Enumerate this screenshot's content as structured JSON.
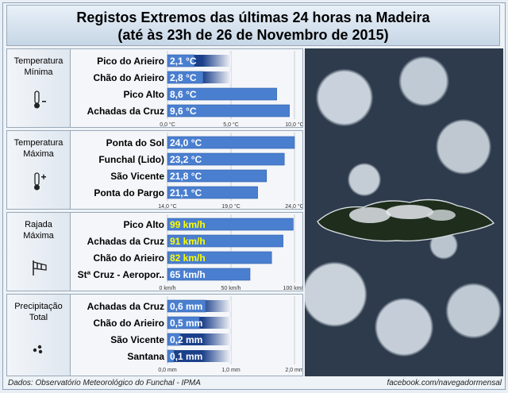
{
  "header": {
    "title_line1": "Registos Extremos das últimas 24 horas na Madeira",
    "title_line2": "(até às 23h de 26 de Novembro de 2015)"
  },
  "footer": {
    "source": "Dados:  Observatório Meteorológico do Funchal - IPMA",
    "credit": "facebook.com/navegadormensal"
  },
  "map": {
    "image_description": "satellite"
  },
  "colors": {
    "bar": "#4a7fd0",
    "bar_dark": "#1b3f8a",
    "label_white": "#ffffff",
    "label_yellow": "#ffff00"
  },
  "chart_data": [
    {
      "type": "bar",
      "category_label": "Temperatura\nMínima",
      "icon": "thermometer-minus-icon",
      "categories": [
        "Pico do Arieiro",
        "Chão do Arieiro",
        "Pico Alto",
        "Achadas da Cruz"
      ],
      "values": [
        2.1,
        2.8,
        8.6,
        9.6
      ],
      "value_labels": [
        "2,1 °C",
        "2,8 °C",
        "8,6 °C",
        "9,6 °C"
      ],
      "xlim": [
        0,
        10
      ],
      "ticks": [
        0,
        5,
        10
      ],
      "tick_labels": [
        "0,0 °C",
        "5,0 °C",
        "10,0 °C"
      ],
      "label_color": "white",
      "faded": true
    },
    {
      "type": "bar",
      "category_label": "Temperatura\nMáxima",
      "icon": "thermometer-plus-icon",
      "categories": [
        "Ponta do Sol",
        "Funchal (Lido)",
        "São Vicente",
        "Ponta do Pargo"
      ],
      "values": [
        24.0,
        23.2,
        21.8,
        21.1
      ],
      "value_labels": [
        "24,0 °C",
        "23,2 °C",
        "21,8 °C",
        "21,1 °C"
      ],
      "xlim": [
        14,
        24
      ],
      "ticks": [
        14,
        19,
        24
      ],
      "tick_labels": [
        "14,0 °C",
        "19,0 °C",
        "24,0 °C"
      ],
      "label_color": "white",
      "faded": false
    },
    {
      "type": "bar",
      "category_label": "Rajada\nMáxima",
      "icon": "windsock-icon",
      "categories": [
        "Pico Alto",
        "Achadas da Cruz",
        "Chão do Arieiro",
        "Stª Cruz - Aeropor.."
      ],
      "values": [
        99,
        91,
        82,
        65
      ],
      "value_labels": [
        "99 km/h",
        "91 km/h",
        "82 km/h",
        "65 km/h"
      ],
      "xlim": [
        0,
        100
      ],
      "ticks": [
        0,
        50,
        100
      ],
      "tick_labels": [
        "0 km/h",
        "50 km/h",
        "100 km/h"
      ],
      "label_color": "yellow-first3",
      "faded": false
    },
    {
      "type": "bar",
      "category_label": "Precipitação\nTotal",
      "icon": "rain-drops-icon",
      "categories": [
        "Achadas da Cruz",
        "Chão do Arieiro",
        "São Vicente",
        "Santana"
      ],
      "values": [
        0.6,
        0.5,
        0.2,
        0.1
      ],
      "value_labels": [
        "0,6 mm",
        "0,5 mm",
        "0,2 mm",
        "0,1 mm"
      ],
      "xlim": [
        0,
        2
      ],
      "ticks": [
        0,
        1,
        2
      ],
      "tick_labels": [
        "0,0 mm",
        "1,0 mm",
        "2,0 mm"
      ],
      "label_color": "white",
      "faded": true
    }
  ]
}
